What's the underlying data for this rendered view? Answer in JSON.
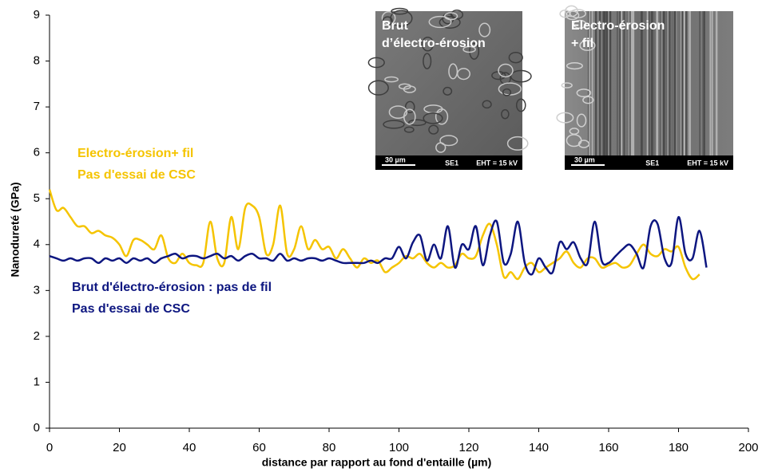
{
  "chart_data": {
    "type": "line",
    "xlabel": "distance par rapport au fond d'entaille (µm)",
    "ylabel": "Nanodureté (GPa)",
    "xlim": [
      0,
      200
    ],
    "xticks": [
      0,
      20,
      40,
      60,
      80,
      100,
      120,
      140,
      160,
      180,
      200
    ],
    "ylim": [
      0,
      9
    ],
    "yticks": [
      0,
      1,
      2,
      3,
      4,
      5,
      6,
      7,
      8,
      9
    ],
    "grid": false,
    "series": [
      {
        "name": "Electro-érosion+ fil",
        "note": "Pas d'essai de CSC",
        "color": "#f5c400",
        "x": [
          0,
          2,
          4,
          6,
          8,
          10,
          12,
          14,
          16,
          18,
          20,
          22,
          24,
          26,
          28,
          30,
          32,
          34,
          36,
          38,
          40,
          42,
          44,
          46,
          48,
          50,
          52,
          54,
          56,
          58,
          60,
          62,
          64,
          66,
          68,
          70,
          72,
          74,
          76,
          78,
          80,
          82,
          84,
          86,
          88,
          90,
          92,
          94,
          96,
          98,
          100,
          102,
          104,
          106,
          108,
          110,
          112,
          114,
          116,
          118,
          120,
          122,
          124,
          126,
          128,
          130,
          132,
          134,
          136,
          138,
          140,
          142,
          144,
          146,
          148,
          150,
          152,
          154,
          156,
          158,
          160,
          162,
          164,
          166,
          168,
          170,
          172,
          174,
          176,
          178,
          180,
          182,
          184,
          186
        ],
        "values": [
          5.2,
          4.75,
          4.8,
          4.6,
          4.4,
          4.4,
          4.25,
          4.3,
          4.2,
          4.15,
          4.0,
          3.75,
          4.1,
          4.1,
          4.0,
          3.9,
          4.2,
          3.7,
          3.6,
          3.8,
          3.6,
          3.55,
          3.6,
          4.5,
          3.7,
          3.6,
          4.6,
          3.9,
          4.8,
          4.85,
          4.6,
          3.8,
          4.0,
          4.85,
          3.8,
          3.9,
          4.4,
          3.9,
          4.1,
          3.9,
          3.95,
          3.7,
          3.9,
          3.7,
          3.5,
          3.7,
          3.6,
          3.65,
          3.4,
          3.5,
          3.6,
          3.75,
          3.7,
          3.8,
          3.6,
          3.5,
          3.6,
          3.5,
          3.55,
          3.8,
          3.7,
          3.75,
          4.2,
          4.45,
          4.0,
          3.3,
          3.4,
          3.25,
          3.5,
          3.6,
          3.4,
          3.5,
          3.6,
          3.7,
          3.85,
          3.6,
          3.5,
          3.7,
          3.7,
          3.5,
          3.55,
          3.6,
          3.5,
          3.55,
          3.8,
          4.0,
          3.8,
          3.75,
          3.9,
          3.85,
          3.95,
          3.5,
          3.25,
          3.35
        ]
      },
      {
        "name": "Brut d'électro-érosion : pas de fil",
        "note": "Pas d'essai de CSC",
        "color": "#0d1680",
        "x": [
          0,
          2,
          4,
          6,
          8,
          10,
          12,
          14,
          16,
          18,
          20,
          22,
          24,
          26,
          28,
          30,
          32,
          34,
          36,
          38,
          40,
          42,
          44,
          46,
          48,
          50,
          52,
          54,
          56,
          58,
          60,
          62,
          64,
          66,
          68,
          70,
          72,
          74,
          76,
          78,
          80,
          82,
          84,
          86,
          88,
          90,
          92,
          94,
          96,
          98,
          100,
          102,
          104,
          106,
          108,
          110,
          112,
          114,
          116,
          118,
          120,
          122,
          124,
          126,
          128,
          130,
          132,
          134,
          136,
          138,
          140,
          142,
          144,
          146,
          148,
          150,
          152,
          154,
          156,
          158,
          160,
          162,
          164,
          166,
          168,
          170,
          172,
          174,
          176,
          178,
          180,
          182,
          184,
          186,
          188
        ],
        "values": [
          3.75,
          3.7,
          3.65,
          3.7,
          3.65,
          3.7,
          3.7,
          3.6,
          3.7,
          3.65,
          3.7,
          3.6,
          3.7,
          3.65,
          3.7,
          3.6,
          3.7,
          3.75,
          3.8,
          3.7,
          3.75,
          3.75,
          3.7,
          3.75,
          3.8,
          3.7,
          3.75,
          3.65,
          3.75,
          3.8,
          3.7,
          3.7,
          3.65,
          3.8,
          3.65,
          3.7,
          3.65,
          3.7,
          3.7,
          3.65,
          3.7,
          3.65,
          3.6,
          3.6,
          3.6,
          3.6,
          3.65,
          3.6,
          3.7,
          3.7,
          3.95,
          3.7,
          4.05,
          4.2,
          3.65,
          4.0,
          3.7,
          4.4,
          3.5,
          4.0,
          3.9,
          4.4,
          3.55,
          4.2,
          4.5,
          3.6,
          3.8,
          4.5,
          3.6,
          3.35,
          3.7,
          3.5,
          3.4,
          4.05,
          3.9,
          4.05,
          3.7,
          3.6,
          4.5,
          3.65,
          3.6,
          3.75,
          3.9,
          4.0,
          3.8,
          3.5,
          4.4,
          4.45,
          3.7,
          3.6,
          4.6,
          3.8,
          3.7,
          4.3,
          3.5
        ]
      }
    ],
    "insets": [
      {
        "title_lines": [
          "Brut",
          "d’électro-érosion"
        ],
        "scale": "30 µm",
        "detector": "SE1",
        "eht": "EHT = 15 kV"
      },
      {
        "title_lines": [
          "Electro-érosion",
          "+ fil"
        ],
        "scale": "30 µm",
        "detector": "SE1",
        "eht": "EHT = 15 kV"
      }
    ]
  }
}
